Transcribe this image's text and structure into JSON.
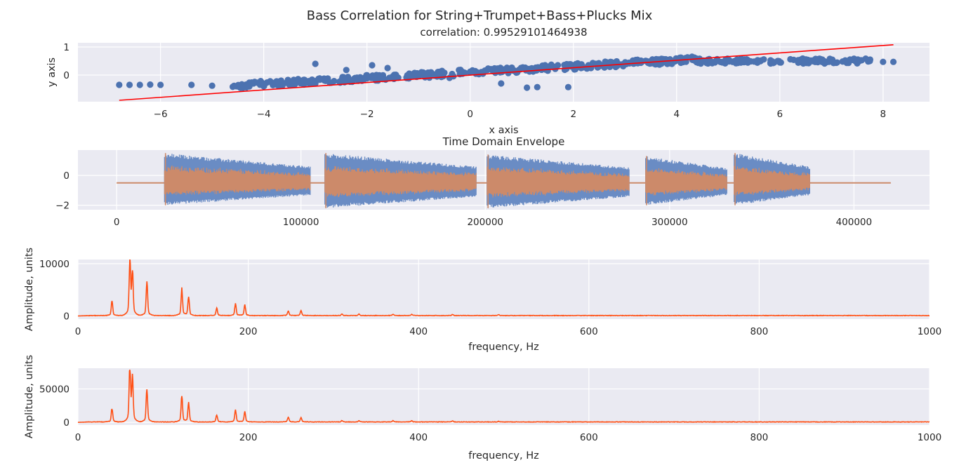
{
  "figure": {
    "suptitle": "Bass Correlation for String+Trumpet+Bass+Plucks Mix"
  },
  "colors": {
    "panel_bg": "#eaeaf2",
    "grid": "#ffffff",
    "scatter": "#4c72b0",
    "fit_line": "#ff0000",
    "env_a": "#6a8cc4",
    "env_b": "#cc8a6a",
    "spectrum": "#ff4f14"
  },
  "chart_data": [
    {
      "type": "scatter",
      "title": "correlation: 0.99529101464938",
      "xlabel": "x axis",
      "ylabel": "y axis",
      "xlim": [
        -7.6,
        8.9
      ],
      "ylim": [
        -0.95,
        1.15
      ],
      "xticks": [
        -6,
        -4,
        -2,
        0,
        2,
        4,
        6,
        8
      ],
      "yticks": [
        0,
        1
      ],
      "grid": true,
      "points_sample": [
        [
          -6.8,
          -0.35
        ],
        [
          -6.6,
          -0.35
        ],
        [
          -6.4,
          -0.35
        ],
        [
          -6.2,
          -0.34
        ],
        [
          -6.0,
          -0.35
        ],
        [
          -5.4,
          -0.35
        ],
        [
          -5.0,
          -0.38
        ],
        [
          -4.6,
          -0.42
        ],
        [
          -4.0,
          -0.4
        ],
        [
          -3.5,
          -0.35
        ],
        [
          -3.0,
          -0.3
        ],
        [
          -2.5,
          -0.2
        ],
        [
          -2.0,
          -0.12
        ],
        [
          -1.5,
          -0.05
        ],
        [
          -1.0,
          0.02
        ],
        [
          -0.5,
          0.08
        ],
        [
          0.0,
          0.12
        ],
        [
          0.5,
          0.18
        ],
        [
          1.0,
          0.22
        ],
        [
          1.5,
          0.3
        ],
        [
          2.0,
          0.33
        ],
        [
          2.5,
          0.38
        ],
        [
          3.0,
          0.42
        ],
        [
          3.5,
          0.5
        ],
        [
          4.0,
          0.52
        ],
        [
          4.4,
          0.55
        ],
        [
          5.0,
          0.5
        ],
        [
          5.5,
          0.48
        ],
        [
          6.0,
          0.45
        ],
        [
          6.5,
          0.5
        ],
        [
          7.0,
          0.48
        ],
        [
          7.5,
          0.48
        ],
        [
          8.0,
          0.47
        ],
        [
          8.2,
          0.47
        ],
        [
          -3.0,
          0.4
        ],
        [
          -1.9,
          0.35
        ],
        [
          -1.6,
          0.25
        ],
        [
          -0.4,
          -0.1
        ],
        [
          0.6,
          -0.3
        ],
        [
          1.1,
          -0.45
        ],
        [
          1.3,
          -0.43
        ],
        [
          1.9,
          -0.43
        ],
        [
          -2.4,
          0.18
        ]
      ],
      "fit_line": {
        "x": [
          -6.8,
          8.2
        ],
        "y": [
          -0.9,
          1.08
        ]
      }
    },
    {
      "type": "line",
      "title": "Time Domain Envelope",
      "xlabel": "",
      "ylabel": "",
      "xlim": [
        -21000,
        441000
      ],
      "ylim": [
        -2.3,
        1.7
      ],
      "xticks": [
        0,
        100000,
        200000,
        300000,
        400000
      ],
      "yticks": [
        -2,
        0
      ],
      "grid": true,
      "baseline": -0.5,
      "segments": [
        {
          "start": 26000,
          "end": 105000,
          "top": 1.5,
          "bottom": -2.0
        },
        {
          "start": 113000,
          "end": 195000,
          "top": 1.5,
          "bottom": -2.2
        },
        {
          "start": 201000,
          "end": 278000,
          "top": 1.4,
          "bottom": -2.2
        },
        {
          "start": 287000,
          "end": 331000,
          "top": 1.3,
          "bottom": -2.0
        },
        {
          "start": 335000,
          "end": 376000,
          "top": 1.5,
          "bottom": -2.0
        }
      ],
      "x_end": 420000
    },
    {
      "type": "line",
      "title": "",
      "xlabel": "frequency, Hz",
      "ylabel": "Amplitude, units",
      "xlim": [
        0,
        1000
      ],
      "ylim": [
        -600,
        10800
      ],
      "xticks": [
        0,
        200,
        400,
        600,
        800,
        1000
      ],
      "yticks": [
        0,
        10000
      ],
      "grid": true,
      "peaks": [
        {
          "f": 40,
          "a": 2700
        },
        {
          "f": 61,
          "a": 10400
        },
        {
          "f": 64,
          "a": 8200
        },
        {
          "f": 81,
          "a": 6400
        },
        {
          "f": 122,
          "a": 5100
        },
        {
          "f": 130,
          "a": 3700
        },
        {
          "f": 163,
          "a": 1400
        },
        {
          "f": 185,
          "a": 2300
        },
        {
          "f": 196,
          "a": 2000
        },
        {
          "f": 247,
          "a": 900
        },
        {
          "f": 262,
          "a": 900
        },
        {
          "f": 310,
          "a": 300
        },
        {
          "f": 330,
          "a": 300
        },
        {
          "f": 370,
          "a": 250
        },
        {
          "f": 392,
          "a": 250
        },
        {
          "f": 440,
          "a": 200
        },
        {
          "f": 494,
          "a": 150
        }
      ]
    },
    {
      "type": "line",
      "title": "",
      "xlabel": "frequency, Hz",
      "ylabel": "Amplitude, units",
      "xlim": [
        0,
        1000
      ],
      "ylim": [
        -4000,
        81000
      ],
      "xticks": [
        0,
        200,
        400,
        600,
        800,
        1000
      ],
      "yticks": [
        0,
        50000
      ],
      "grid": true,
      "peaks": [
        {
          "f": 40,
          "a": 20000
        },
        {
          "f": 61,
          "a": 80000
        },
        {
          "f": 64,
          "a": 63000
        },
        {
          "f": 81,
          "a": 50000
        },
        {
          "f": 122,
          "a": 39000
        },
        {
          "f": 130,
          "a": 28000
        },
        {
          "f": 163,
          "a": 10000
        },
        {
          "f": 185,
          "a": 17500
        },
        {
          "f": 196,
          "a": 15000
        },
        {
          "f": 247,
          "a": 7000
        },
        {
          "f": 262,
          "a": 6500
        },
        {
          "f": 310,
          "a": 2000
        },
        {
          "f": 330,
          "a": 2000
        },
        {
          "f": 370,
          "a": 1800
        },
        {
          "f": 392,
          "a": 1800
        },
        {
          "f": 440,
          "a": 1500
        },
        {
          "f": 494,
          "a": 1000
        }
      ]
    }
  ]
}
